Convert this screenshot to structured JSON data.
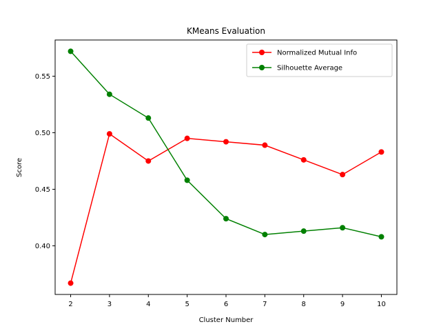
{
  "chart_data": {
    "type": "line",
    "title": "KMeans Evaluation",
    "xlabel": "Cluster Number",
    "ylabel": "Score",
    "x": [
      2,
      3,
      4,
      5,
      6,
      7,
      8,
      9,
      10
    ],
    "xticks": [
      "2",
      "3",
      "4",
      "5",
      "6",
      "7",
      "8",
      "9",
      "10"
    ],
    "yticks": [
      "0.40",
      "0.45",
      "0.50",
      "0.55"
    ],
    "ytick_values": [
      0.4,
      0.45,
      0.5,
      0.55
    ],
    "xlim": [
      1.6,
      10.4
    ],
    "ylim": [
      0.357,
      0.582
    ],
    "grid": false,
    "legend_position": "top-right",
    "series": [
      {
        "name": "Normalized Mutual Info",
        "color": "#ff0000",
        "marker": "circle",
        "values": [
          0.367,
          0.499,
          0.475,
          0.495,
          0.492,
          0.489,
          0.476,
          0.463,
          0.483
        ]
      },
      {
        "name": "Silhouette Average",
        "color": "#008000",
        "marker": "circle",
        "values": [
          0.572,
          0.534,
          0.513,
          0.458,
          0.424,
          0.41,
          0.413,
          0.416,
          0.408
        ]
      }
    ]
  }
}
